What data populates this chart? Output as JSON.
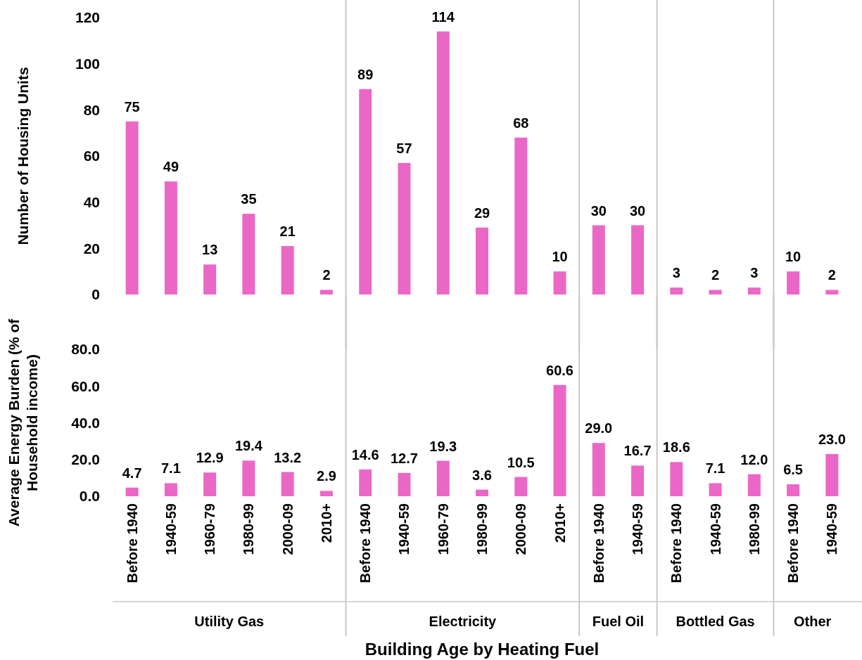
{
  "chart_data": [
    {
      "type": "bar",
      "ylabel": "Number of Housing Units",
      "categories": [
        "Before 1940",
        "1940-59",
        "1960-79",
        "1980-99",
        "2000-09",
        "2010+",
        "Before 1940",
        "1940-59",
        "1960-79",
        "1980-99",
        "2000-09",
        "2010+",
        "Before 1940",
        "1940-59",
        "Before 1940",
        "1940-59",
        "1980-99",
        "Before 1940",
        "1940-59"
      ],
      "series": [
        {
          "color": "#eb67c6",
          "values": [
            75,
            49,
            13,
            35,
            21,
            2,
            89,
            57,
            114,
            29,
            68,
            10,
            30,
            30,
            3,
            2,
            3,
            10,
            2
          ]
        }
      ],
      "ylim": [
        0,
        120
      ],
      "yticks": [
        0,
        20,
        40,
        60,
        80,
        100,
        120
      ],
      "data_labels": true,
      "tick_labels": "y"
    },
    {
      "type": "bar",
      "ylabel": "Average Energy Burden (% of Household income)",
      "xlabel": "Building Age by Heating Fuel",
      "categories": [
        "Before 1940",
        "1940-59",
        "1960-79",
        "1980-99",
        "2000-09",
        "2010+",
        "Before 1940",
        "1940-59",
        "1960-79",
        "1980-99",
        "2000-09",
        "2010+",
        "Before 1940",
        "1940-59",
        "Before 1940",
        "1940-59",
        "1980-99",
        "Before 1940",
        "1940-59"
      ],
      "series": [
        {
          "color": "#eb67c6",
          "values": [
            4.7,
            7.1,
            12.9,
            19.4,
            13.2,
            2.9,
            14.6,
            12.7,
            19.3,
            3.6,
            10.5,
            60.6,
            29.0,
            16.7,
            18.6,
            7.1,
            12.0,
            6.5,
            23.0
          ],
          "value_labels": [
            "4.7",
            "7.1",
            "12.9",
            "19.4",
            "13.2",
            "2.9",
            "14.6",
            "12.7",
            "19.3",
            "3.6",
            "10.5",
            "60.6",
            "29.0",
            "16.7",
            "18.6",
            "7.1",
            "12.0",
            "6.5",
            "23.0"
          ]
        }
      ],
      "ylim": [
        0,
        80
      ],
      "yticks": [
        {
          "value": 0,
          "label": "0.0"
        },
        {
          "value": 20,
          "label": "20.0"
        },
        {
          "value": 40,
          "label": "40.0"
        },
        {
          "value": 60,
          "label": "60.0"
        },
        {
          "value": 80,
          "label": "80.0"
        }
      ],
      "annotations": [
        "Utility Gas",
        "Electricity",
        "Fuel Oil",
        "Bottled Gas",
        "Other"
      ]
    }
  ]
}
